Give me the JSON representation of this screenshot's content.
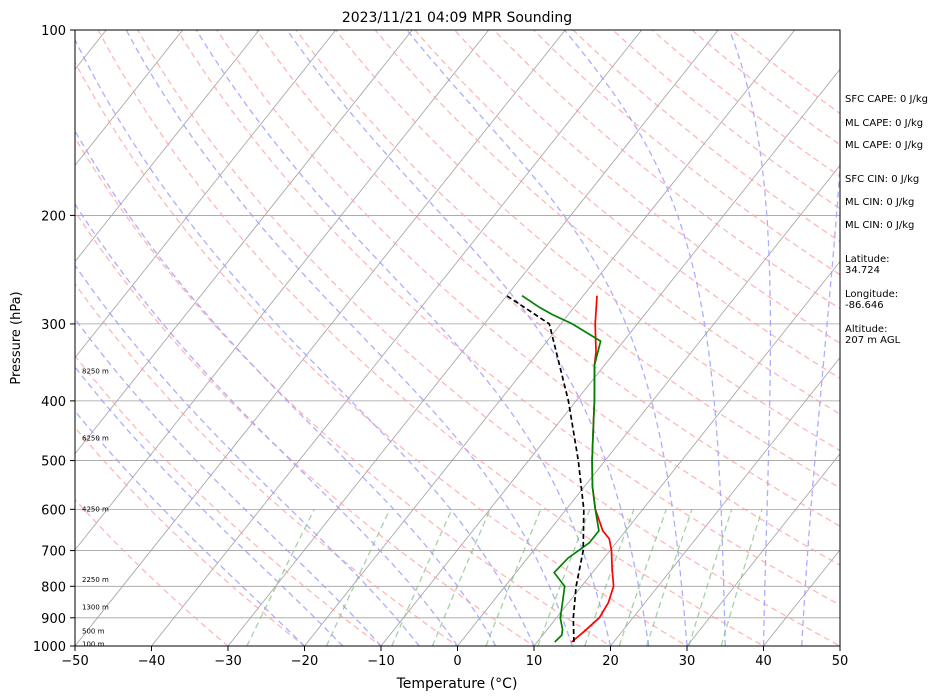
{
  "chart_data": {
    "type": "line",
    "title": "2023/11/21 04:09 MPR Sounding",
    "xlabel": "Temperature (°C)",
    "ylabel": "Pressure (hPa)",
    "xlim": [
      -50,
      50
    ],
    "ylim": [
      1000,
      100
    ],
    "y_scale": "log",
    "grid": true,
    "x_ticks": [
      "−50",
      "−40",
      "−30",
      "−20",
      "−10",
      "0",
      "10",
      "20",
      "30",
      "40",
      "50"
    ],
    "y_ticks": [
      "100",
      "200",
      "300",
      "400",
      "500",
      "600",
      "700",
      "800",
      "900",
      "1000"
    ],
    "height_labels": [
      "8250 m",
      "6250 m",
      "4250 m",
      "2250 m",
      "1300 m",
      "500 m",
      "100 m"
    ],
    "series": [
      {
        "kind": "temperature",
        "color": "#ff0000",
        "points": [
          {
            "p": 985,
            "t": 14.5
          },
          {
            "p": 950,
            "t": 15.0
          },
          {
            "p": 900,
            "t": 15.6
          },
          {
            "p": 850,
            "t": 15.2
          },
          {
            "p": 800,
            "t": 14.2
          },
          {
            "p": 750,
            "t": 12.2
          },
          {
            "p": 700,
            "t": 10.2
          },
          {
            "p": 670,
            "t": 8.7
          },
          {
            "p": 650,
            "t": 7.0
          },
          {
            "p": 600,
            "t": 3.8
          },
          {
            "p": 550,
            "t": 1.0
          },
          {
            "p": 500,
            "t": -1.7
          },
          {
            "p": 450,
            "t": -4.5
          },
          {
            "p": 400,
            "t": -7.6
          },
          {
            "p": 350,
            "t": -11.3
          },
          {
            "p": 333,
            "t": -12.5
          },
          {
            "p": 300,
            "t": -15.5
          },
          {
            "p": 270,
            "t": -18.2
          }
        ]
      },
      {
        "kind": "dewpoint",
        "color": "#008000",
        "points": [
          {
            "p": 985,
            "t": 12.3
          },
          {
            "p": 960,
            "t": 12.5
          },
          {
            "p": 940,
            "t": 12.0
          },
          {
            "p": 900,
            "t": 10.5
          },
          {
            "p": 850,
            "t": 9.2
          },
          {
            "p": 800,
            "t": 7.8
          },
          {
            "p": 760,
            "t": 5.0
          },
          {
            "p": 720,
            "t": 5.3
          },
          {
            "p": 680,
            "t": 6.5
          },
          {
            "p": 650,
            "t": 6.5
          },
          {
            "p": 600,
            "t": 3.8
          },
          {
            "p": 550,
            "t": 1.0
          },
          {
            "p": 500,
            "t": -1.7
          },
          {
            "p": 450,
            "t": -4.5
          },
          {
            "p": 400,
            "t": -7.6
          },
          {
            "p": 350,
            "t": -11.3
          },
          {
            "p": 320,
            "t": -13.0
          },
          {
            "p": 300,
            "t": -18.5
          },
          {
            "p": 290,
            "t": -22.0
          },
          {
            "p": 282,
            "t": -24.5
          },
          {
            "p": 270,
            "t": -28.0
          }
        ]
      },
      {
        "kind": "parcel",
        "color": "#000000",
        "dashed": true,
        "points": [
          {
            "p": 985,
            "t": 14.8
          },
          {
            "p": 900,
            "t": 12.2
          },
          {
            "p": 800,
            "t": 9.3
          },
          {
            "p": 700,
            "t": 6.5
          },
          {
            "p": 600,
            "t": 2.3
          },
          {
            "p": 500,
            "t": -3.5
          },
          {
            "p": 400,
            "t": -11.0
          },
          {
            "p": 300,
            "t": -21.5
          },
          {
            "p": 270,
            "t": -30.0
          }
        ]
      }
    ],
    "background_lines": {
      "dry_adiabats": "red dashed",
      "moist_adiabats": "blue dashed",
      "mixing_ratio": "green dashed",
      "isotherms": "gray solid"
    }
  },
  "indices": {
    "sfc_cape": "SFC CAPE: 0 J/kg",
    "ml_cape_1": "ML CAPE: 0 J/kg",
    "ml_cape_2": "ML CAPE: 0 J/kg",
    "sfc_cin": "SFC CIN: 0 J/kg",
    "ml_cin_1": "ML CIN: 0 J/kg",
    "ml_cin_2": "ML CIN: 0 J/kg",
    "lat_label": "Latitude:",
    "lat_value": "34.724",
    "lon_label": "Longitude:",
    "lon_value": "-86.646",
    "alt_label": "Altitude:",
    "alt_value": "207 m AGL"
  },
  "colors": {
    "temperature": "#ff0000",
    "dewpoint": "#008000",
    "parcel": "#000000",
    "dry_adiabat": "#ff9f9f",
    "moist_adiabat": "#9f9fff",
    "mixing_ratio": "#7fbf7f",
    "isotherm": "#a0a0a0"
  }
}
